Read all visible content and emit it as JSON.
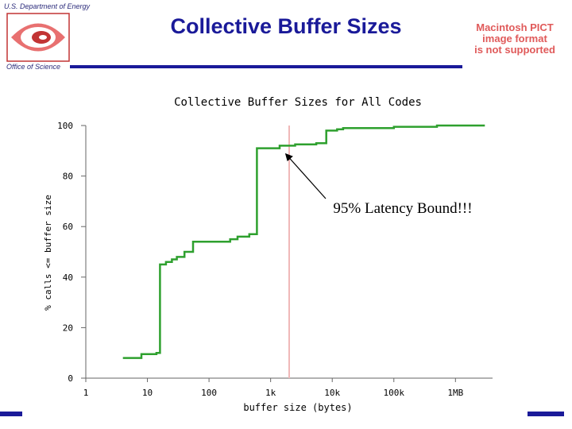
{
  "header": {
    "org_top": "U.S. Department of Energy",
    "org_bottom": "Office of Science",
    "slide_title": "Collective Buffer Sizes",
    "pict_notice": "Macintosh PICT\nimage format\nis not supported"
  },
  "colors": {
    "brand": "#1a1a99",
    "line": "#2ea02e",
    "marker_line": "#f0b8b8",
    "pict_text": "#e05a5a"
  },
  "icons": {
    "logo": "doe-logo-icon",
    "arrow": "arrow-icon"
  },
  "chart_data": {
    "type": "line",
    "title": "Collective Buffer Sizes for All Codes",
    "xlabel": "buffer size (bytes)",
    "ylabel": "% calls <= buffer size",
    "x_scale": "log",
    "xlim": [
      1,
      4000000
    ],
    "ylim": [
      0,
      100
    ],
    "x_ticks": [
      {
        "value": 1,
        "label": "1"
      },
      {
        "value": 10,
        "label": "10"
      },
      {
        "value": 100,
        "label": "100"
      },
      {
        "value": 1000,
        "label": "1k"
      },
      {
        "value": 10000,
        "label": "10k"
      },
      {
        "value": 100000,
        "label": "100k"
      },
      {
        "value": 1000000,
        "label": "1MB"
      }
    ],
    "y_ticks": [
      0,
      20,
      40,
      60,
      80,
      100
    ],
    "grid": false,
    "series": [
      {
        "x": [
          4,
          8,
          8,
          14,
          14,
          16,
          16,
          20,
          20,
          25,
          25,
          30,
          30,
          40,
          40,
          55,
          55,
          220,
          220,
          290,
          290,
          450,
          450,
          600,
          600,
          1400,
          1400,
          2500,
          2500,
          5500,
          5500,
          8000,
          8000,
          12000,
          12000,
          15000,
          15000,
          100000,
          100000,
          500000,
          500000,
          3000000
        ],
        "y": [
          8,
          8,
          9.5,
          9.5,
          10,
          10,
          45,
          45,
          46,
          46,
          47,
          47,
          48,
          48,
          50,
          50,
          54,
          54,
          55,
          55,
          56,
          56,
          57,
          57,
          91,
          91,
          92,
          92,
          92.5,
          92.5,
          93,
          93,
          98,
          98,
          98.5,
          98.5,
          99,
          99,
          99.5,
          99.5,
          100,
          100
        ]
      }
    ],
    "marker": {
      "x": 2000
    },
    "annotations": [
      {
        "text": "95% Latency Bound!!!",
        "x": 1600,
        "y": 91
      }
    ]
  }
}
